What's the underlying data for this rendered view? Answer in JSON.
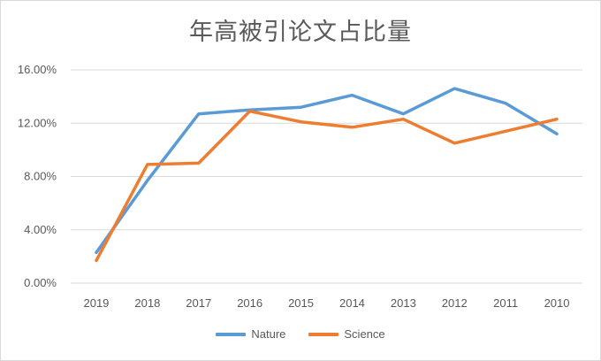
{
  "chart_data": {
    "type": "line",
    "title": "年高被引论文占比量",
    "xlabel": "",
    "ylabel": "",
    "categories": [
      "2019",
      "2018",
      "2017",
      "2016",
      "2015",
      "2014",
      "2013",
      "2012",
      "2011",
      "2010"
    ],
    "series": [
      {
        "name": "Nature",
        "color": "#5b9bd5",
        "values": [
          0.023,
          0.077,
          0.127,
          0.13,
          0.132,
          0.141,
          0.127,
          0.146,
          0.135,
          0.112
        ]
      },
      {
        "name": "Science",
        "color": "#ed7d31",
        "values": [
          0.017,
          0.089,
          0.09,
          0.129,
          0.121,
          0.117,
          0.123,
          0.105,
          0.114,
          0.123
        ]
      }
    ],
    "ylim": [
      0,
      0.16
    ],
    "yticks": [
      "0.00%",
      "4.00%",
      "8.00%",
      "12.00%",
      "16.00%"
    ],
    "grid": true,
    "legend_position": "bottom"
  }
}
